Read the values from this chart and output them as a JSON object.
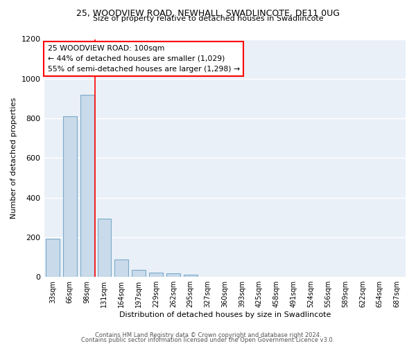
{
  "title": "25, WOODVIEW ROAD, NEWHALL, SWADLINCOTE, DE11 0UG",
  "subtitle": "Size of property relative to detached houses in Swadlincote",
  "xlabel": "Distribution of detached houses by size in Swadlincote",
  "ylabel": "Number of detached properties",
  "bar_color": "#c9daea",
  "bar_edge_color": "#7aaac8",
  "background_color": "#eaf0f8",
  "categories": [
    "33sqm",
    "66sqm",
    "98sqm",
    "131sqm",
    "164sqm",
    "197sqm",
    "229sqm",
    "262sqm",
    "295sqm",
    "327sqm",
    "360sqm",
    "393sqm",
    "425sqm",
    "458sqm",
    "491sqm",
    "524sqm",
    "556sqm",
    "589sqm",
    "622sqm",
    "654sqm",
    "687sqm"
  ],
  "values": [
    193,
    810,
    920,
    295,
    88,
    35,
    20,
    17,
    10,
    0,
    0,
    0,
    0,
    0,
    0,
    0,
    0,
    0,
    0,
    0,
    0
  ],
  "ylim": [
    0,
    1200
  ],
  "yticks": [
    0,
    200,
    400,
    600,
    800,
    1000,
    1200
  ],
  "annotation_line1": "25 WOODVIEW ROAD: 100sqm",
  "annotation_line2": "← 44% of detached houses are smaller (1,029)",
  "annotation_line3": "55% of semi-detached houses are larger (1,298) →",
  "annotation_box_color": "white",
  "annotation_box_edge": "red",
  "vline_color": "red",
  "vline_x_index": 2.45,
  "footer1": "Contains HM Land Registry data © Crown copyright and database right 2024.",
  "footer2": "Contains public sector information licensed under the Open Government Licence v3.0."
}
